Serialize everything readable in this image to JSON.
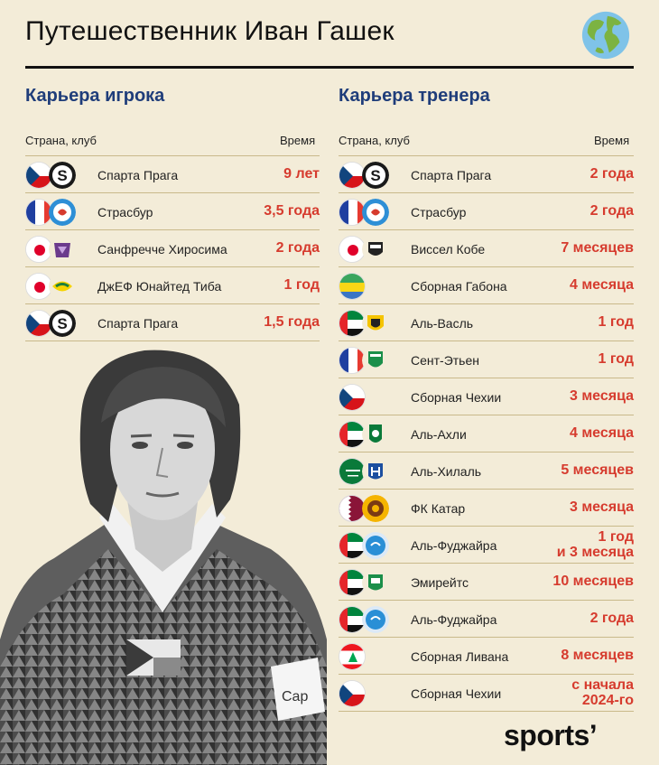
{
  "header": {
    "title": "Путешественник Иван Гашек"
  },
  "player": {
    "title": "Карьера игрока",
    "col_country": "Страна, клуб",
    "col_time": "Время",
    "rows": [
      {
        "flag": "cz",
        "logo": "sparta",
        "club": "Спарта Прага",
        "time": "9 лет"
      },
      {
        "flag": "fr",
        "logo": "strasbourg",
        "club": "Страсбур",
        "time": "3,5 года"
      },
      {
        "flag": "jp",
        "logo": "hiroshima",
        "club": "Санфречче Хиросима",
        "time": "2 года"
      },
      {
        "flag": "jp",
        "logo": "chiba",
        "club": "ДжЕФ Юнайтед Тиба",
        "time": "1 год"
      },
      {
        "flag": "cz",
        "logo": "sparta",
        "club": "Спарта Прага",
        "time": "1,5 года"
      }
    ]
  },
  "coach": {
    "title": "Карьера тренера",
    "col_country": "Страна, клуб",
    "col_time": "Время",
    "rows": [
      {
        "flag": "cz",
        "logo": "sparta",
        "club": "Спарта Прага",
        "time": "2 года"
      },
      {
        "flag": "fr",
        "logo": "strasbourg",
        "club": "Страсбур",
        "time": "2 года"
      },
      {
        "flag": "jp",
        "logo": "vissel",
        "club": "Виссел Кобе",
        "time": "7 месяцев"
      },
      {
        "flag": "ga",
        "logo": "",
        "club": "Сборная Габона",
        "time": "4 месяца"
      },
      {
        "flag": "ae",
        "logo": "alwasl",
        "club": "Аль-Васль",
        "time": "1 год"
      },
      {
        "flag": "fr",
        "logo": "saint-etienne",
        "club": "Сент-Этьен",
        "time": "1 год"
      },
      {
        "flag": "cz",
        "logo": "",
        "club": "Сборная Чехии",
        "time": "3 месяца"
      },
      {
        "flag": "ae",
        "logo": "alahli",
        "club": "Аль-Ахли",
        "time": "4 месяца"
      },
      {
        "flag": "sa",
        "logo": "alhilal",
        "club": "Аль-Хилаль",
        "time": "5 месяцев"
      },
      {
        "flag": "qa",
        "logo": "qatar-sc",
        "club": "ФК Катар",
        "time": "3 месяца"
      },
      {
        "flag": "ae",
        "logo": "fujairah",
        "club": "Аль-Фуджайра",
        "time": "1 год\nи 3 месяца"
      },
      {
        "flag": "ae",
        "logo": "emirates",
        "club": "Эмирейтс",
        "time": "10 месяцев"
      },
      {
        "flag": "ae",
        "logo": "fujairah",
        "club": "Аль-Фуджайра",
        "time": "2 года"
      },
      {
        "flag": "lb",
        "logo": "",
        "club": "Сборная Ливана",
        "time": "8 месяцев"
      },
      {
        "flag": "cz",
        "logo": "",
        "club": "Сборная Чехии",
        "time": "с начала\n2024-го"
      }
    ]
  },
  "photo": {
    "armband_text": "Cap"
  },
  "brand": {
    "name": "sports",
    "mark": "’"
  },
  "colors": {
    "background": "#f3ecd8",
    "accent_time": "#d63b2e",
    "section_title": "#1f3d7a",
    "rule": "#c9b98a"
  }
}
